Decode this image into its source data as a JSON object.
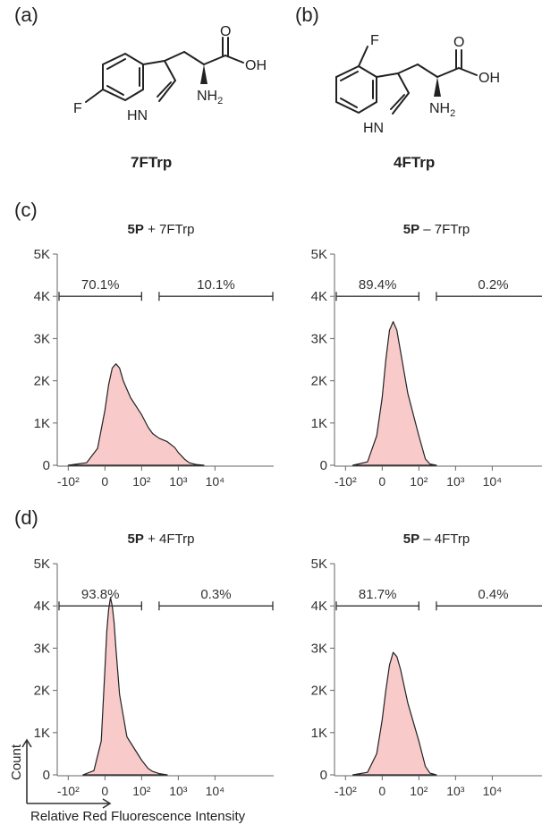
{
  "panel_labels": [
    "(a)",
    "(b)",
    "(c)",
    "(d)"
  ],
  "compounds": {
    "a": {
      "name": "7FTrp",
      "atoms": {
        "F": "F",
        "HN": "HN",
        "NH2_N": "NH",
        "NH2_sub": "2",
        "O": "O",
        "OH": "OH"
      }
    },
    "b": {
      "name": "4FTrp",
      "atoms": {
        "F": "F",
        "HN": "HN",
        "NH2_N": "NH",
        "NH2_sub": "2",
        "O": "O",
        "OH": "OH"
      }
    }
  },
  "axis_labels": {
    "y": "Count",
    "x": "Relative Red Fluorescence Intensity"
  },
  "chart_data": [
    {
      "type": "area",
      "panel": "(c)",
      "title_bold": "5P",
      "title_rest": " + 7FTrp",
      "yticks": [
        "0",
        "1K",
        "2K",
        "3K",
        "4K",
        "5K"
      ],
      "ylim": [
        0,
        5000
      ],
      "xticks": [
        "-10²",
        "0",
        "10²",
        "10³",
        "10⁴"
      ],
      "gates": [
        {
          "label": "70.1%",
          "from": -200,
          "to": 100
        },
        {
          "label": "10.1%",
          "from": 300,
          "to": 1000000
        }
      ],
      "color": "#f8caca",
      "x": [
        -100,
        -50,
        -20,
        0,
        10,
        20,
        30,
        40,
        50,
        70,
        100,
        150,
        200,
        300,
        500,
        800,
        1000,
        1500,
        2000,
        3000,
        5000
      ],
      "y": [
        0,
        60,
        400,
        1300,
        1900,
        2300,
        2400,
        2300,
        2000,
        1600,
        1200,
        900,
        750,
        640,
        560,
        420,
        300,
        140,
        60,
        20,
        0
      ]
    },
    {
      "type": "area",
      "panel": "(c)",
      "title_bold": "5P",
      "title_rest": " – 7FTrp",
      "yticks": [
        "0",
        "1K",
        "2K",
        "3K",
        "4K",
        "5K"
      ],
      "ylim": [
        0,
        5000
      ],
      "xticks": [
        "-10²",
        "0",
        "10²",
        "10³",
        "10⁴"
      ],
      "gates": [
        {
          "label": "89.4%",
          "from": -200,
          "to": 100
        },
        {
          "label": "0.2%",
          "from": 300,
          "to": 1000000
        }
      ],
      "color": "#f8caca",
      "x": [
        -80,
        -40,
        -15,
        0,
        10,
        20,
        30,
        40,
        50,
        70,
        100,
        150,
        200,
        300
      ],
      "y": [
        0,
        80,
        700,
        1600,
        2500,
        3200,
        3400,
        3200,
        2700,
        1700,
        700,
        150,
        30,
        0
      ]
    },
    {
      "type": "area",
      "panel": "(d)",
      "title_bold": "5P",
      "title_rest": " + 4FTrp",
      "yticks": [
        "0",
        "1K",
        "2K",
        "3K",
        "4K",
        "5K"
      ],
      "ylim": [
        0,
        5000
      ],
      "xticks": [
        "-10²",
        "0",
        "10²",
        "10³",
        "10⁴"
      ],
      "gates": [
        {
          "label": "93.8%",
          "from": -200,
          "to": 100
        },
        {
          "label": "0.3%",
          "from": 300,
          "to": 1000000
        }
      ],
      "color": "#f8caca",
      "x": [
        -60,
        -30,
        -10,
        0,
        5,
        10,
        15,
        20,
        25,
        30,
        40,
        60,
        100,
        150,
        200,
        300,
        500
      ],
      "y": [
        0,
        100,
        800,
        2500,
        3400,
        3900,
        4200,
        4000,
        3600,
        3000,
        1900,
        900,
        350,
        150,
        80,
        30,
        0
      ]
    },
    {
      "type": "area",
      "panel": "(d)",
      "title_bold": "5P",
      "title_rest": " – 4FTrp",
      "yticks": [
        "0",
        "1K",
        "2K",
        "3K",
        "4K",
        "5K"
      ],
      "ylim": [
        0,
        5000
      ],
      "xticks": [
        "-10²",
        "0",
        "10²",
        "10³",
        "10⁴"
      ],
      "gates": [
        {
          "label": "81.7%",
          "from": -200,
          "to": 100
        },
        {
          "label": "0.4%",
          "from": 300,
          "to": 1000000
        }
      ],
      "color": "#f8caca",
      "x": [
        -80,
        -40,
        -15,
        0,
        10,
        20,
        30,
        40,
        50,
        70,
        100,
        150,
        200,
        300
      ],
      "y": [
        0,
        60,
        500,
        1300,
        2000,
        2600,
        2900,
        2800,
        2500,
        1700,
        800,
        200,
        40,
        0
      ]
    }
  ]
}
